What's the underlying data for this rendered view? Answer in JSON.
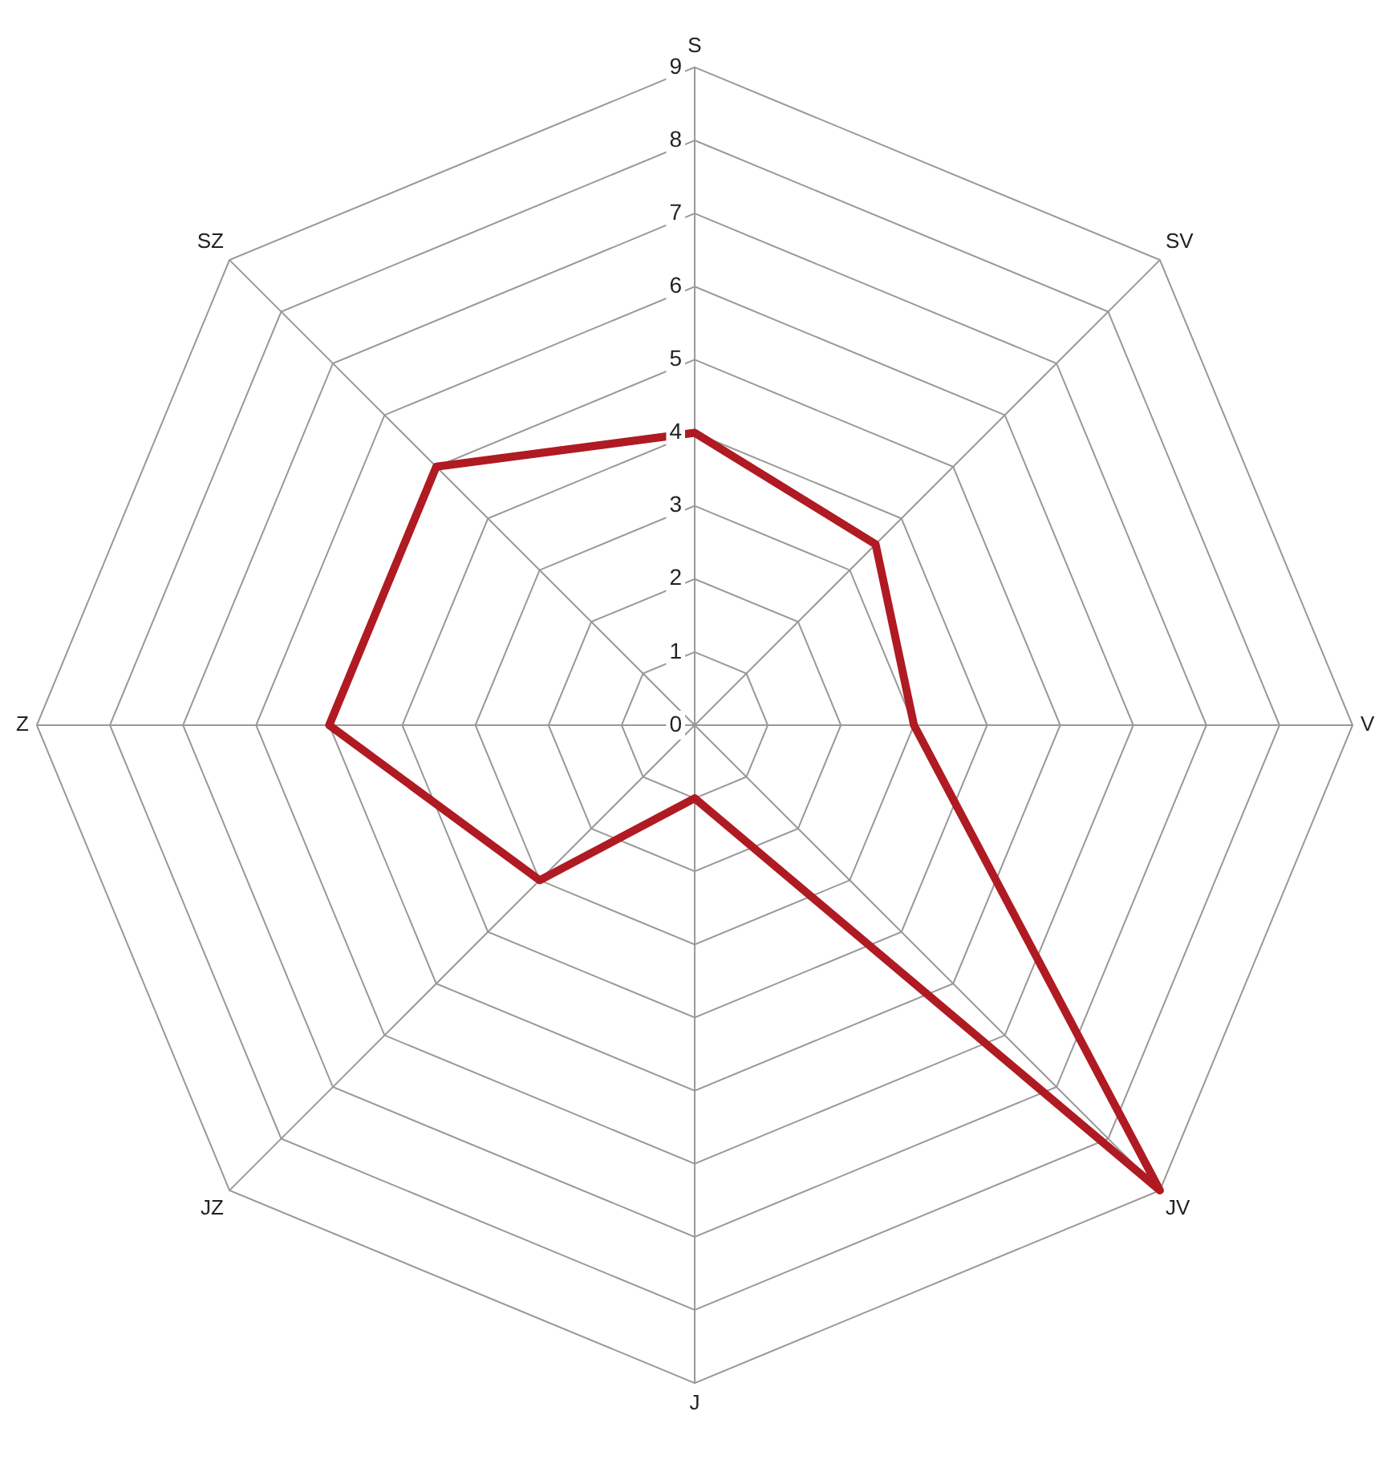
{
  "chart_data": {
    "type": "radar",
    "categories": [
      "S",
      "SV",
      "V",
      "JV",
      "J",
      "JZ",
      "Z",
      "SZ"
    ],
    "series": [
      {
        "color": "#b01a22",
        "values": [
          4,
          3.5,
          3,
          9,
          1,
          3,
          5,
          5
        ]
      }
    ],
    "ylim": [
      0,
      9
    ],
    "yticks": [
      0,
      1,
      2,
      3,
      4,
      5,
      6,
      7,
      8,
      9
    ],
    "grid": true,
    "legend": false,
    "marker": "none",
    "line_style": "solid"
  }
}
